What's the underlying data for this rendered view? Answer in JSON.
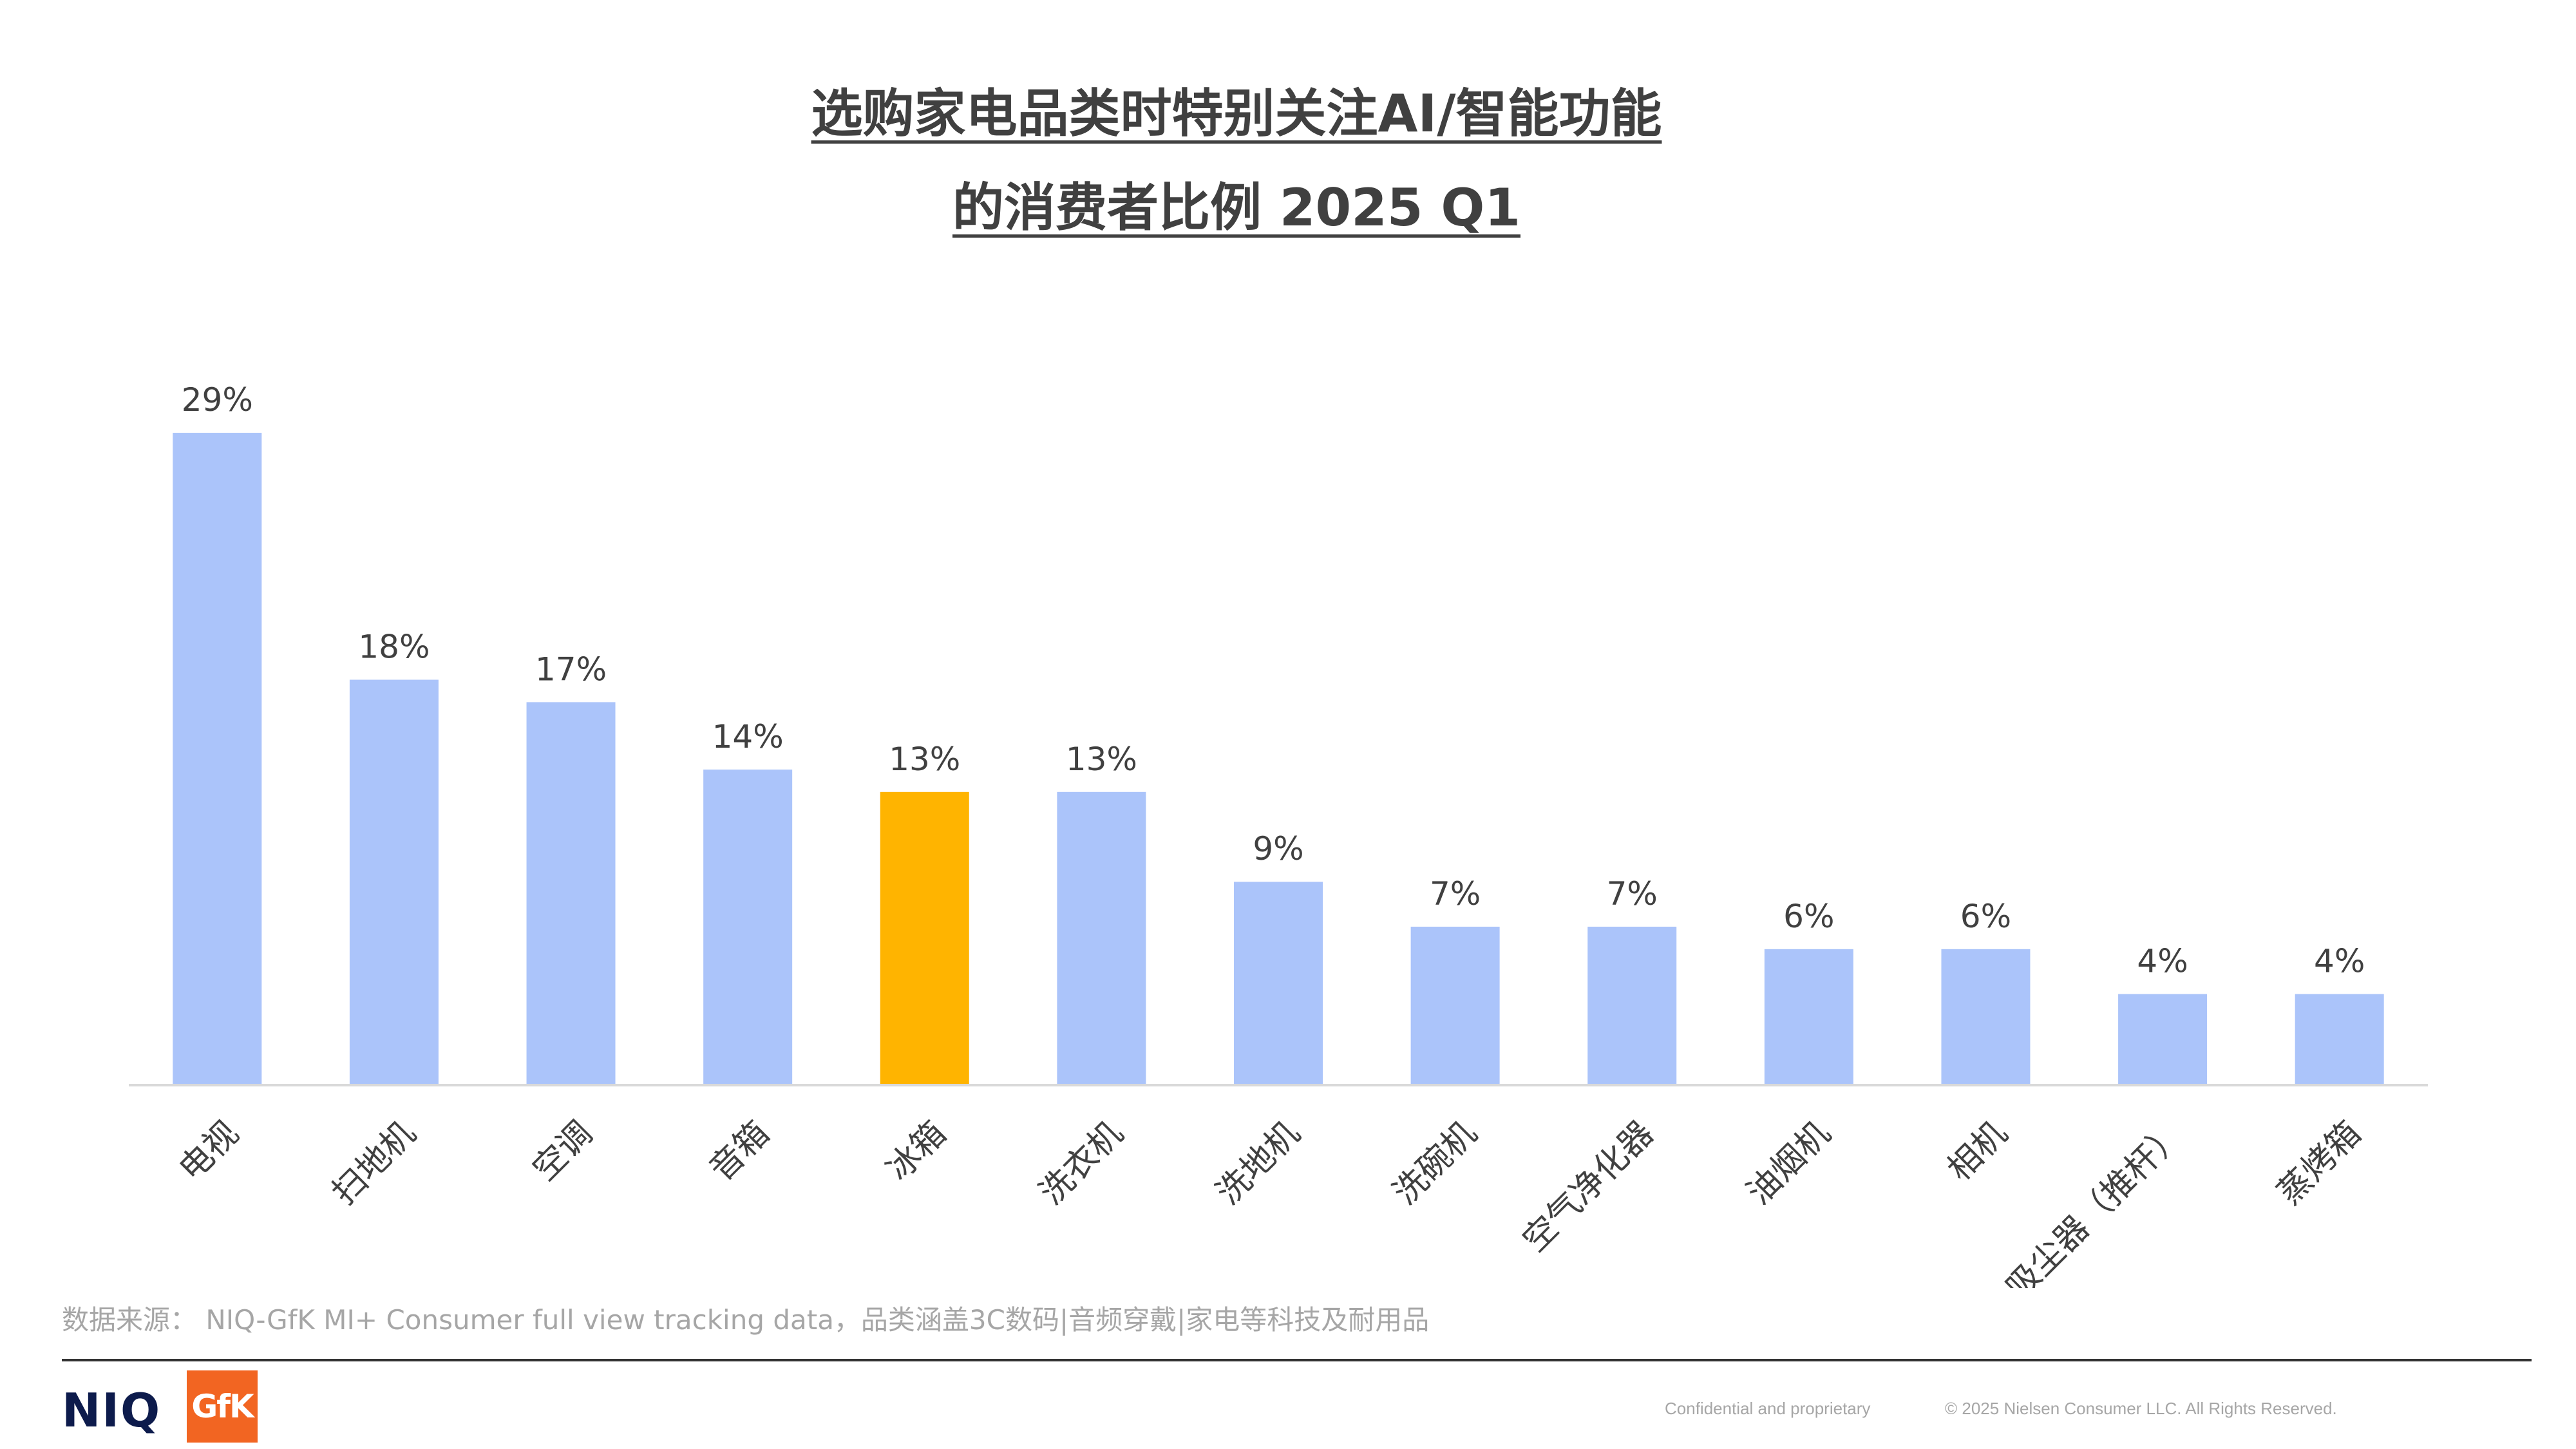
{
  "title_line1": "选购家电品类时特别关注AI/智能功能",
  "title_line2": "的消费者比例 2025 Q1",
  "chart_data": {
    "type": "bar",
    "categories": [
      "电视",
      "扫地机",
      "空调",
      "音箱",
      "冰箱",
      "洗衣机",
      "洗地机",
      "洗碗机",
      "空气净化器",
      "油烟机",
      "相机",
      "吸尘器（推杆）",
      "蒸烤箱"
    ],
    "values": [
      29,
      18,
      17,
      14,
      13,
      13,
      9,
      7,
      7,
      6,
      6,
      4,
      4
    ],
    "value_labels": [
      "29%",
      "18%",
      "17%",
      "14%",
      "13%",
      "13%",
      "9%",
      "7%",
      "7%",
      "6%",
      "6%",
      "4%",
      "4%"
    ],
    "highlight_index": 4,
    "colors": {
      "default": "#abc4fa",
      "highlight": "#ffb400",
      "axis": "#d9d9d9",
      "label": "#404040"
    },
    "ylim": [
      0,
      29
    ],
    "grid": false,
    "legend": "none"
  },
  "source": "数据来源： NIQ-GfK MI+ Consumer full view tracking data，品类涵盖3C数码|音频穿戴|家电等科技及耐用品",
  "footer": {
    "niq_logo": "NIQ",
    "gfk_logo": "GfK",
    "confidential": "Confidential and proprietary",
    "copyright": "© 2025 Nielsen Consumer LLC. All Rights Reserved."
  }
}
